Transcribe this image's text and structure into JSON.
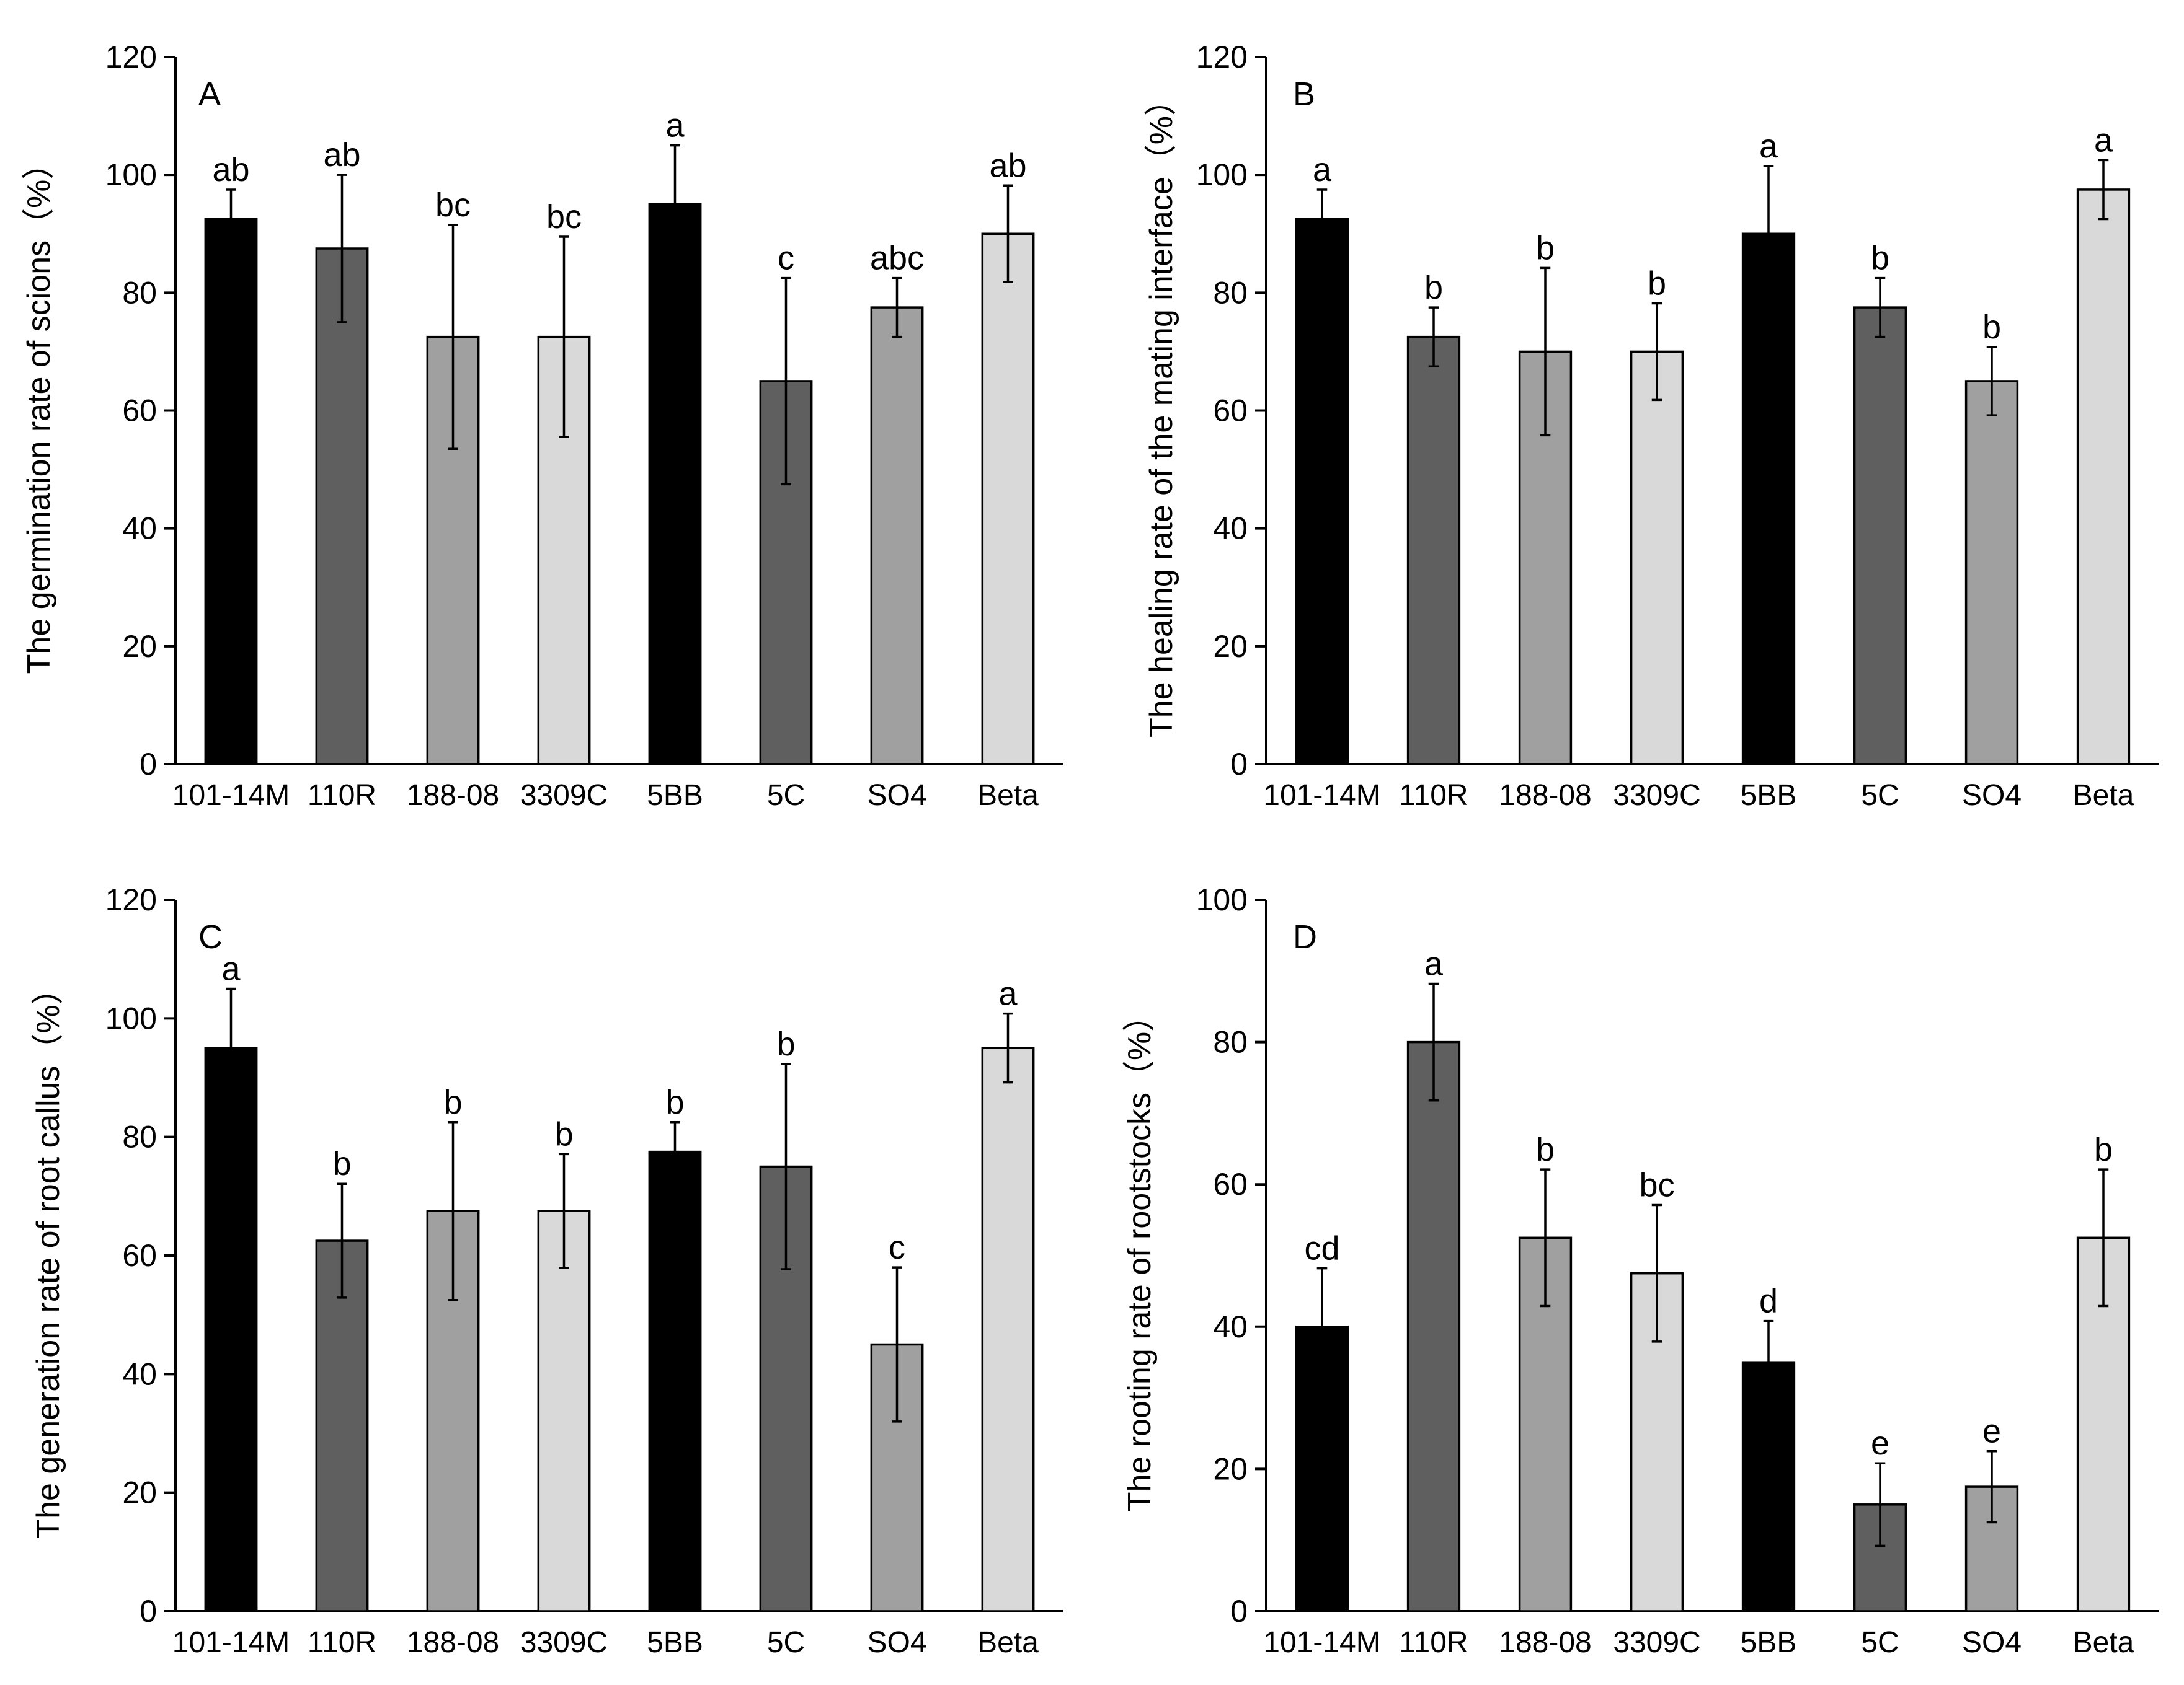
{
  "chart_data": [
    {
      "panel": "A",
      "type": "bar",
      "categories": [
        "101-14M",
        "110R",
        "188-08",
        "3309C",
        "5BB",
        "5C",
        "SO4",
        "Beta"
      ],
      "values": [
        92.5,
        87.5,
        72.5,
        72.5,
        95,
        65,
        77.5,
        90
      ],
      "errors": [
        5,
        12.5,
        19,
        17,
        10,
        17.5,
        5,
        8.2
      ],
      "significance": [
        "ab",
        "ab",
        "bc",
        "bc",
        "a",
        "c",
        "abc",
        "ab"
      ],
      "ylabel": "The germination rate of scions（%）",
      "ylim": [
        0,
        120
      ],
      "yticks": [
        0,
        20,
        40,
        60,
        80,
        100,
        120
      ]
    },
    {
      "panel": "B",
      "type": "bar",
      "categories": [
        "101-14M",
        "110R",
        "188-08",
        "3309C",
        "5BB",
        "5C",
        "SO4",
        "Beta"
      ],
      "values": [
        92.5,
        72.5,
        70,
        70,
        90,
        77.5,
        65,
        97.5
      ],
      "errors": [
        5,
        5,
        14.2,
        8.2,
        11.5,
        5,
        5.8,
        5
      ],
      "significance": [
        "a",
        "b",
        "b",
        "b",
        "a",
        "b",
        "b",
        "a"
      ],
      "ylabel": "The healing rate of the mating interface（%）",
      "ylim": [
        0,
        120
      ],
      "yticks": [
        0,
        20,
        40,
        60,
        80,
        100,
        120
      ]
    },
    {
      "panel": "C",
      "type": "bar",
      "categories": [
        "101-14M",
        "110R",
        "188-08",
        "3309C",
        "5BB",
        "5C",
        "SO4",
        "Beta"
      ],
      "values": [
        95,
        62.5,
        67.5,
        67.5,
        77.5,
        75,
        45,
        95
      ],
      "errors": [
        10,
        9.6,
        15,
        9.6,
        5,
        17.3,
        13,
        5.8
      ],
      "significance": [
        "a",
        "b",
        "b",
        "b",
        "b",
        "b",
        "c",
        "a"
      ],
      "ylabel": "The generation rate of root callus（%）",
      "ylim": [
        0,
        120
      ],
      "yticks": [
        0,
        20,
        40,
        60,
        80,
        100,
        120
      ]
    },
    {
      "panel": "D",
      "type": "bar",
      "categories": [
        "101-14M",
        "110R",
        "188-08",
        "3309C",
        "5BB",
        "5C",
        "SO4",
        "Beta"
      ],
      "values": [
        40,
        80,
        52.5,
        47.5,
        35,
        15,
        17.5,
        52.5
      ],
      "errors": [
        8.2,
        8.2,
        9.6,
        9.6,
        5.8,
        5.8,
        5,
        9.6
      ],
      "significance": [
        "cd",
        "a",
        "b",
        "bc",
        "d",
        "e",
        "e",
        "b"
      ],
      "ylabel": "The rooting rate of rootstocks（%）",
      "ylim": [
        0,
        100
      ],
      "yticks": [
        0,
        20,
        40,
        60,
        80,
        100
      ]
    }
  ],
  "colors": {
    "101-14M": "#000000",
    "110R": "#5f5f5f",
    "188-08": "#a0a0a0",
    "3309C": "#d9d9d9",
    "5BB": "#000000",
    "5C": "#5f5f5f",
    "SO4": "#a0a0a0",
    "Beta": "#d9d9d9"
  }
}
